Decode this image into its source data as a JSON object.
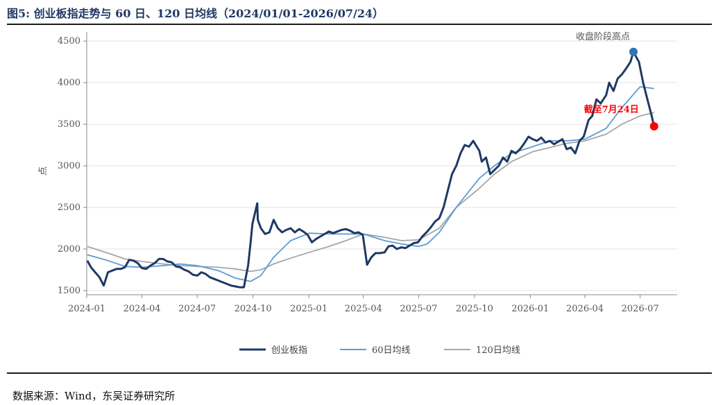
{
  "header": {
    "title": "图5:  创业板指走势与 60 日、120 日均线（2024/01/01-2026/07/24）"
  },
  "footer": {
    "source": "数据来源：Wind，东吴证券研究所"
  },
  "colors": {
    "index": "#1f3864",
    "ma60": "#5b9bd5",
    "ma120": "#a6a6a6",
    "peak_marker": "#2e75b6",
    "end_marker": "#ff0000",
    "annotation_end": "#ff0000",
    "annotation_peak": "#555555"
  },
  "chart_data": {
    "type": "line",
    "ylabel": "点",
    "ylim": [
      1450,
      4560
    ],
    "yticks": [
      1500,
      2000,
      2500,
      3000,
      3500,
      4000,
      4500
    ],
    "xlim": [
      "2024-01-01",
      "2026-08-31"
    ],
    "xticks": [
      "2024-01",
      "2024-04",
      "2024-07",
      "2024-10",
      "2025-01",
      "2025-04",
      "2025-07",
      "2025-10",
      "2026-01",
      "2026-04",
      "2026-07"
    ],
    "grid": "horizontal",
    "legend_position": "bottom",
    "annotations": [
      {
        "text": "收盘阶段高点",
        "date": "2026-06-20",
        "value": 4370
      },
      {
        "text": "截至7月24日",
        "date": "2026-07-24",
        "value": 3475
      }
    ],
    "series": [
      {
        "name": "创业板指",
        "x": [
          "2024-01-02",
          "2024-01-08",
          "2024-01-15",
          "2024-01-22",
          "2024-01-29",
          "2024-02-05",
          "2024-02-19",
          "2024-02-26",
          "2024-03-04",
          "2024-03-11",
          "2024-03-18",
          "2024-03-25",
          "2024-04-01",
          "2024-04-08",
          "2024-04-15",
          "2024-04-22",
          "2024-04-29",
          "2024-05-06",
          "2024-05-13",
          "2024-05-20",
          "2024-05-27",
          "2024-06-03",
          "2024-06-10",
          "2024-06-17",
          "2024-06-24",
          "2024-07-01",
          "2024-07-08",
          "2024-07-15",
          "2024-07-22",
          "2024-07-29",
          "2024-08-05",
          "2024-08-12",
          "2024-08-19",
          "2024-08-26",
          "2024-09-02",
          "2024-09-09",
          "2024-09-16",
          "2024-09-23",
          "2024-09-27",
          "2024-09-30",
          "2024-10-08",
          "2024-10-09",
          "2024-10-14",
          "2024-10-21",
          "2024-10-28",
          "2024-11-04",
          "2024-11-11",
          "2024-11-18",
          "2024-11-25",
          "2024-12-02",
          "2024-12-09",
          "2024-12-16",
          "2024-12-23",
          "2024-12-30",
          "2025-01-06",
          "2025-01-13",
          "2025-01-20",
          "2025-02-03",
          "2025-02-10",
          "2025-02-17",
          "2025-02-24",
          "2025-03-03",
          "2025-03-10",
          "2025-03-17",
          "2025-03-24",
          "2025-03-31",
          "2025-04-07",
          "2025-04-14",
          "2025-04-21",
          "2025-04-28",
          "2025-05-06",
          "2025-05-12",
          "2025-05-19",
          "2025-05-26",
          "2025-06-03",
          "2025-06-09",
          "2025-06-16",
          "2025-06-23",
          "2025-06-30",
          "2025-07-07",
          "2025-07-14",
          "2025-07-21",
          "2025-07-28",
          "2025-08-04",
          "2025-08-11",
          "2025-08-18",
          "2025-08-25",
          "2025-09-01",
          "2025-09-08",
          "2025-09-15",
          "2025-09-22",
          "2025-09-29",
          "2025-10-09",
          "2025-10-13",
          "2025-10-20",
          "2025-10-27",
          "2025-11-03",
          "2025-11-10",
          "2025-11-17",
          "2025-11-24",
          "2025-12-01",
          "2025-12-08",
          "2025-12-15",
          "2025-12-22",
          "2025-12-29",
          "2026-01-05",
          "2026-01-12",
          "2026-01-19",
          "2026-01-26",
          "2026-02-02",
          "2026-02-09",
          "2026-02-23",
          "2026-03-02",
          "2026-03-09",
          "2026-03-16",
          "2026-03-23",
          "2026-03-30",
          "2026-04-07",
          "2026-04-13",
          "2026-04-20",
          "2026-04-27",
          "2026-05-06",
          "2026-05-11",
          "2026-05-18",
          "2026-05-25",
          "2026-06-01",
          "2026-06-08",
          "2026-06-15",
          "2026-06-20",
          "2026-06-29",
          "2026-07-06",
          "2026-07-13",
          "2026-07-20",
          "2026-07-24"
        ],
        "values": [
          1860,
          1780,
          1720,
          1660,
          1560,
          1720,
          1760,
          1760,
          1780,
          1870,
          1860,
          1830,
          1770,
          1760,
          1800,
          1830,
          1880,
          1880,
          1850,
          1840,
          1790,
          1780,
          1750,
          1730,
          1690,
          1680,
          1720,
          1700,
          1660,
          1640,
          1620,
          1600,
          1580,
          1560,
          1550,
          1540,
          1540,
          1800,
          2070,
          2300,
          2550,
          2350,
          2250,
          2180,
          2200,
          2350,
          2250,
          2200,
          2230,
          2250,
          2200,
          2240,
          2210,
          2170,
          2080,
          2120,
          2150,
          2210,
          2190,
          2210,
          2230,
          2240,
          2220,
          2190,
          2200,
          2170,
          1810,
          1900,
          1950,
          1950,
          1960,
          2030,
          2040,
          2000,
          2020,
          2010,
          2040,
          2070,
          2080,
          2150,
          2200,
          2260,
          2330,
          2370,
          2500,
          2700,
          2900,
          3000,
          3150,
          3250,
          3230,
          3300,
          3180,
          3050,
          3100,
          2900,
          2950,
          3000,
          3100,
          3050,
          3180,
          3150,
          3200,
          3270,
          3350,
          3320,
          3300,
          3340,
          3280,
          3300,
          3260,
          3320,
          3200,
          3220,
          3150,
          3300,
          3350,
          3550,
          3600,
          3800,
          3750,
          3850,
          4000,
          3900,
          4050,
          4100,
          4170,
          4250,
          4370,
          4250,
          4000,
          3800,
          3600,
          3470
        ]
      },
      {
        "name": "60日均线",
        "x": [
          "2024-01-02",
          "2024-02-05",
          "2024-03-04",
          "2024-04-01",
          "2024-05-06",
          "2024-06-03",
          "2024-07-01",
          "2024-08-05",
          "2024-09-02",
          "2024-09-27",
          "2024-10-14",
          "2024-11-04",
          "2024-12-02",
          "2025-01-02",
          "2025-02-03",
          "2025-03-03",
          "2025-04-01",
          "2025-05-06",
          "2025-06-03",
          "2025-07-01",
          "2025-07-15",
          "2025-08-04",
          "2025-09-01",
          "2025-10-09",
          "2025-11-03",
          "2025-12-01",
          "2026-01-05",
          "2026-02-02",
          "2026-03-02",
          "2026-04-01",
          "2026-05-06",
          "2026-06-01",
          "2026-07-01",
          "2026-07-24"
        ],
        "values": [
          1930,
          1860,
          1790,
          1780,
          1800,
          1820,
          1800,
          1740,
          1650,
          1610,
          1680,
          1900,
          2100,
          2190,
          2180,
          2180,
          2180,
          2100,
          2060,
          2030,
          2060,
          2200,
          2500,
          2850,
          3000,
          3150,
          3230,
          3300,
          3300,
          3320,
          3450,
          3700,
          3950,
          3930
        ]
      },
      {
        "name": "120日均线",
        "x": [
          "2024-01-02",
          "2024-02-05",
          "2024-03-04",
          "2024-04-01",
          "2024-05-06",
          "2024-06-03",
          "2024-07-01",
          "2024-08-05",
          "2024-09-02",
          "2024-09-27",
          "2024-10-14",
          "2024-11-04",
          "2024-12-02",
          "2025-01-02",
          "2025-02-03",
          "2025-03-03",
          "2025-04-01",
          "2025-05-06",
          "2025-06-03",
          "2025-07-01",
          "2025-08-04",
          "2025-09-01",
          "2025-10-09",
          "2025-11-03",
          "2025-12-01",
          "2026-01-05",
          "2026-02-02",
          "2026-03-02",
          "2026-04-01",
          "2026-05-06",
          "2026-06-01",
          "2026-07-01",
          "2026-07-24"
        ],
        "values": [
          2030,
          1950,
          1880,
          1850,
          1820,
          1800,
          1790,
          1780,
          1760,
          1730,
          1750,
          1820,
          1890,
          1960,
          2030,
          2100,
          2180,
          2140,
          2100,
          2110,
          2250,
          2500,
          2730,
          2900,
          3050,
          3170,
          3220,
          3270,
          3300,
          3380,
          3500,
          3600,
          3640
        ]
      }
    ]
  }
}
